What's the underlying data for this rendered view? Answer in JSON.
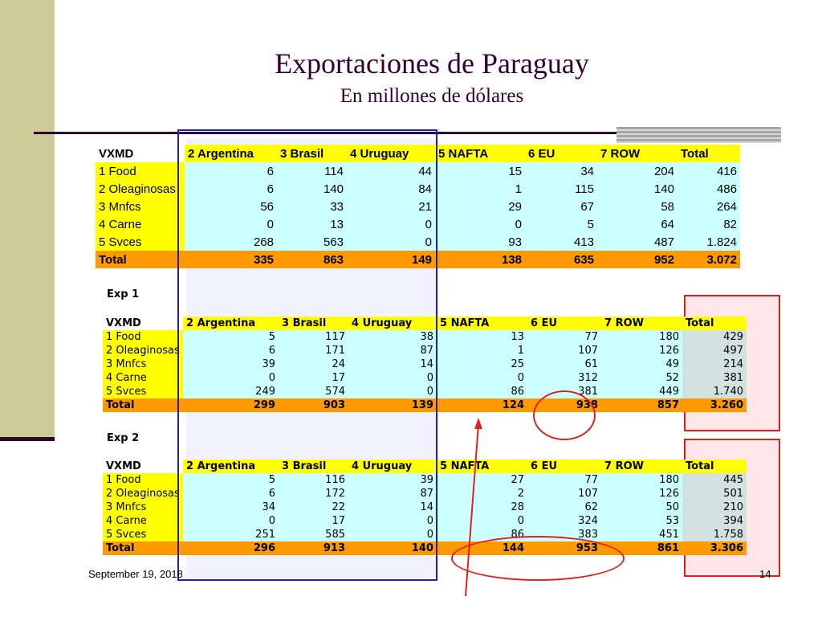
{
  "slide": {
    "title": "Exportaciones de Paraguay",
    "subtitle": "En millones de dólares",
    "footer_date": "September 19, 2018",
    "page_number": "14"
  },
  "colors": {
    "accent_dark": "#330033",
    "side_bar": "#cccc99",
    "row_label_bg": "#ffff00",
    "cell_bg": "#ccffff",
    "total_bg": "#ff9900",
    "highlight_red": "#e02020",
    "highlight_blue": "#1f1fb8"
  },
  "tables": [
    {
      "label": "",
      "headers": [
        "VXMD",
        "2 Argentina",
        "3 Brasil",
        "4 Uruguay",
        "5 NAFTA",
        "6 EU",
        "7 ROW",
        "Total"
      ],
      "rows": [
        {
          "label": "1 Food",
          "values": [
            "6",
            "114",
            "44",
            "15",
            "34",
            "204",
            "416"
          ]
        },
        {
          "label": "2 Oleaginosas",
          "values": [
            "6",
            "140",
            "84",
            "1",
            "115",
            "140",
            "486"
          ]
        },
        {
          "label": "3 Mnfcs",
          "values": [
            "56",
            "33",
            "21",
            "29",
            "67",
            "58",
            "264"
          ]
        },
        {
          "label": "4 Carne",
          "values": [
            "0",
            "13",
            "0",
            "0",
            "5",
            "64",
            "82"
          ]
        },
        {
          "label": "5 Svces",
          "values": [
            "268",
            "563",
            "0",
            "93",
            "413",
            "487",
            "1.824"
          ]
        }
      ],
      "total": {
        "label": "Total",
        "values": [
          "335",
          "863",
          "149",
          "138",
          "635",
          "952",
          "3.072"
        ]
      }
    },
    {
      "label": "Exp 1",
      "headers": [
        "VXMD",
        "2 Argentina",
        "3 Brasil",
        "4 Uruguay",
        "5 NAFTA",
        "6 EU",
        "7 ROW",
        "Total"
      ],
      "rows": [
        {
          "label": "1 Food",
          "values": [
            "5",
            "117",
            "38",
            "13",
            "77",
            "180",
            "429"
          ]
        },
        {
          "label": "2 Oleaginosas",
          "values": [
            "6",
            "171",
            "87",
            "1",
            "107",
            "126",
            "497"
          ]
        },
        {
          "label": "3 Mnfcs",
          "values": [
            "39",
            "24",
            "14",
            "25",
            "61",
            "49",
            "214"
          ]
        },
        {
          "label": "4 Carne",
          "values": [
            "0",
            "17",
            "0",
            "0",
            "312",
            "52",
            "381"
          ]
        },
        {
          "label": "5 Svces",
          "values": [
            "249",
            "574",
            "0",
            "86",
            "381",
            "449",
            "1.740"
          ]
        }
      ],
      "total": {
        "label": "Total",
        "values": [
          "299",
          "903",
          "139",
          "124",
          "938",
          "857",
          "3.260"
        ]
      }
    },
    {
      "label": "Exp 2",
      "headers": [
        "VXMD",
        "2 Argentina",
        "3 Brasil",
        "4 Uruguay",
        "5 NAFTA",
        "6 EU",
        "7 ROW",
        "Total"
      ],
      "rows": [
        {
          "label": "1 Food",
          "values": [
            "5",
            "116",
            "39",
            "27",
            "77",
            "180",
            "445"
          ]
        },
        {
          "label": "2 Oleaginosas",
          "values": [
            "6",
            "172",
            "87",
            "2",
            "107",
            "126",
            "501"
          ]
        },
        {
          "label": "3 Mnfcs",
          "values": [
            "34",
            "22",
            "14",
            "28",
            "62",
            "50",
            "210"
          ]
        },
        {
          "label": "4 Carne",
          "values": [
            "0",
            "17",
            "0",
            "0",
            "324",
            "53",
            "394"
          ]
        },
        {
          "label": "5 Svces",
          "values": [
            "251",
            "585",
            "0",
            "86",
            "383",
            "451",
            "1.758"
          ]
        }
      ],
      "total": {
        "label": "Total",
        "values": [
          "296",
          "913",
          "140",
          "144",
          "953",
          "861",
          "3.306"
        ]
      }
    }
  ]
}
